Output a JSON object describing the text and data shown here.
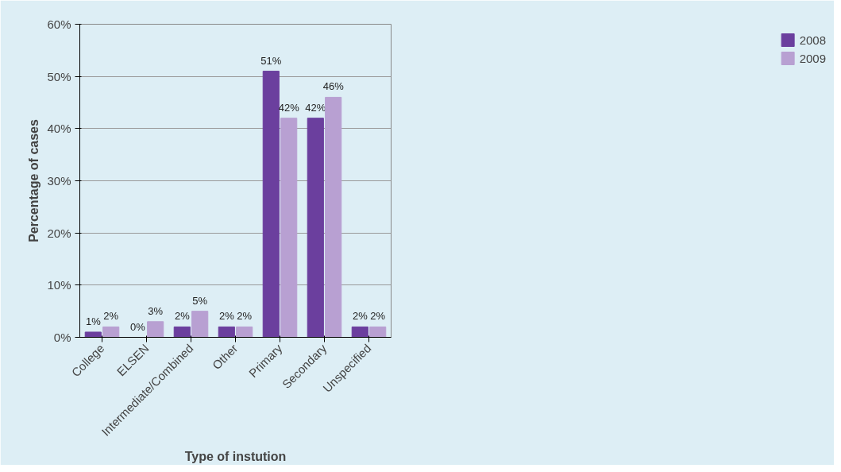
{
  "chart_data": {
    "type": "bar",
    "xlabel": "Type of instution",
    "ylabel": "Percentage of cases",
    "categories": [
      "College",
      "ELSEN",
      "Intermediate/Combined",
      "Other",
      "Primary",
      "Secondary",
      "Unspecified"
    ],
    "series": [
      {
        "name": "2008",
        "color": "#6b3f9e",
        "values": [
          1,
          0,
          2,
          2,
          51,
          42,
          2
        ],
        "value_labels": [
          "1%",
          "0%",
          "2%",
          "2%",
          "51%",
          "42%",
          "2%"
        ]
      },
      {
        "name": "2009",
        "color": "#b8a0d2",
        "values": [
          2,
          3,
          5,
          2,
          42,
          46,
          2
        ],
        "value_labels": [
          "2%",
          "3%",
          "5%",
          "2%",
          "42%",
          "46%",
          "2%"
        ]
      }
    ],
    "ylim": [
      0,
      60
    ],
    "yticks": [
      {
        "value": 0,
        "label": "0%"
      },
      {
        "value": 10,
        "label": "10%"
      },
      {
        "value": 20,
        "label": "20%"
      },
      {
        "value": 30,
        "label": "30%"
      },
      {
        "value": 40,
        "label": "40%"
      },
      {
        "value": 50,
        "label": "50%"
      },
      {
        "value": 60,
        "label": "60%"
      }
    ],
    "grid": "y",
    "legend": "right"
  }
}
